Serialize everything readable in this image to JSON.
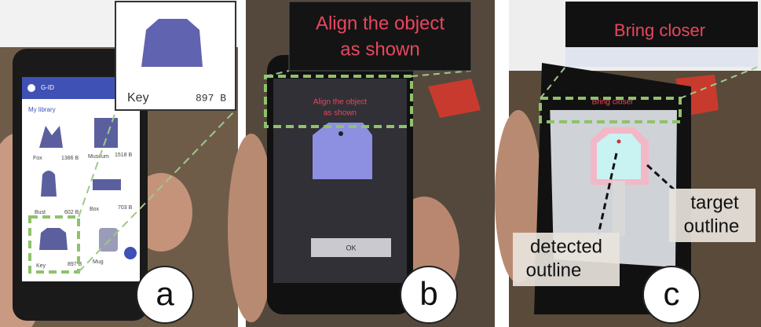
{
  "panels": [
    {
      "label": "a",
      "app_title": "G-ID",
      "library_title": "My library",
      "items": [
        {
          "name": "Fox",
          "size": "1386 B"
        },
        {
          "name": "Museum",
          "size": "1518 B"
        },
        {
          "name": "Bust",
          "size": "602 B"
        },
        {
          "name": "Box",
          "size": "703 B"
        },
        {
          "name": "Key",
          "size": "897 B"
        },
        {
          "name": "Mug"
        }
      ],
      "zoom": {
        "name": "Key",
        "size": "897 B"
      }
    },
    {
      "label": "b",
      "zoom_text": [
        "Align the object",
        "as shown"
      ],
      "screen_text": [
        "Align the object",
        "as shown"
      ],
      "button": "OK"
    },
    {
      "label": "c",
      "zoom_text": "Bring closer",
      "screen_text": "Bring closer",
      "annotations": [
        [
          "detected",
          "outline"
        ],
        [
          "target",
          "outline"
        ]
      ]
    }
  ]
}
